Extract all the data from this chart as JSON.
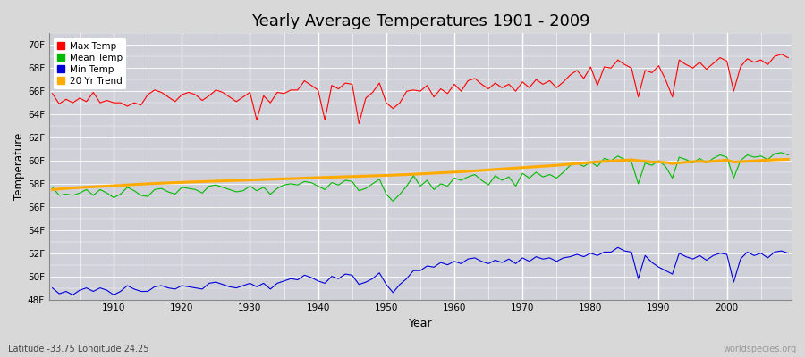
{
  "title": "Yearly Average Temperatures 1901 - 2009",
  "xlabel": "Year",
  "ylabel": "Temperature",
  "lat_lon_label": "Latitude -33.75 Longitude 24.25",
  "watermark": "worldspecies.org",
  "start_year": 1901,
  "end_year": 2009,
  "ylim_min": 48,
  "ylim_max": 71,
  "yticks": [
    48,
    50,
    52,
    54,
    56,
    58,
    60,
    62,
    64,
    66,
    68,
    70
  ],
  "ytick_labels": [
    "48F",
    "50F",
    "52F",
    "54F",
    "56F",
    "58F",
    "60F",
    "62F",
    "64F",
    "66F",
    "68F",
    "70F"
  ],
  "bg_color": "#d8d8d8",
  "plot_bg_color": "#d0d0d8",
  "grid_color": "#ffffff",
  "max_temp_color": "#ff0000",
  "mean_temp_color": "#00bb00",
  "min_temp_color": "#0000dd",
  "trend_color": "#ffaa00",
  "legend_labels": [
    "Max Temp",
    "Mean Temp",
    "Min Temp",
    "20 Yr Trend"
  ],
  "max_temp": [
    65.8,
    64.9,
    65.3,
    65.0,
    65.4,
    65.1,
    65.9,
    65.0,
    65.2,
    65.0,
    65.0,
    64.7,
    65.0,
    64.8,
    65.7,
    66.1,
    65.9,
    65.5,
    65.1,
    65.7,
    65.9,
    65.7,
    65.2,
    65.6,
    66.1,
    65.9,
    65.5,
    65.1,
    65.5,
    65.9,
    63.5,
    65.6,
    65.0,
    65.9,
    65.8,
    66.1,
    66.1,
    66.9,
    66.5,
    66.1,
    63.5,
    66.5,
    66.2,
    66.7,
    66.6,
    63.2,
    65.4,
    65.9,
    66.7,
    65.0,
    64.5,
    65.0,
    66.0,
    66.1,
    66.0,
    66.5,
    65.5,
    66.2,
    65.8,
    66.6,
    66.0,
    66.9,
    67.1,
    66.6,
    66.2,
    66.7,
    66.3,
    66.6,
    66.0,
    66.8,
    66.3,
    67.0,
    66.6,
    66.9,
    66.3,
    66.8,
    67.4,
    67.8,
    67.1,
    68.1,
    66.5,
    68.1,
    68.0,
    68.7,
    68.3,
    68.0,
    65.5,
    67.8,
    67.6,
    68.2,
    67.0,
    65.5,
    68.7,
    68.3,
    68.0,
    68.5,
    67.9,
    68.4,
    68.9,
    68.6,
    66.0,
    68.1,
    68.8,
    68.5,
    68.7,
    68.3,
    69.0,
    69.2,
    68.9
  ],
  "mean_temp": [
    57.7,
    57.0,
    57.1,
    57.0,
    57.2,
    57.5,
    57.0,
    57.5,
    57.2,
    56.8,
    57.1,
    57.7,
    57.4,
    57.0,
    56.9,
    57.5,
    57.6,
    57.3,
    57.1,
    57.7,
    57.6,
    57.5,
    57.2,
    57.8,
    57.9,
    57.7,
    57.5,
    57.3,
    57.4,
    57.8,
    57.4,
    57.7,
    57.1,
    57.6,
    57.9,
    58.0,
    57.9,
    58.2,
    58.1,
    57.8,
    57.5,
    58.1,
    57.9,
    58.3,
    58.2,
    57.4,
    57.6,
    58.0,
    58.4,
    57.1,
    56.5,
    57.1,
    57.8,
    58.7,
    57.8,
    58.3,
    57.5,
    58.0,
    57.8,
    58.5,
    58.3,
    58.6,
    58.8,
    58.3,
    57.9,
    58.7,
    58.3,
    58.6,
    57.8,
    58.9,
    58.5,
    59.0,
    58.6,
    58.8,
    58.5,
    59.0,
    59.6,
    59.8,
    59.5,
    59.9,
    59.5,
    60.2,
    60.0,
    60.4,
    60.1,
    59.9,
    58.0,
    59.8,
    59.6,
    60.0,
    59.5,
    58.5,
    60.3,
    60.1,
    59.8,
    60.2,
    59.8,
    60.2,
    60.5,
    60.3,
    58.5,
    60.0,
    60.5,
    60.3,
    60.4,
    60.1,
    60.6,
    60.7,
    60.5
  ],
  "min_temp": [
    49.0,
    48.5,
    48.7,
    48.4,
    48.8,
    49.0,
    48.7,
    49.0,
    48.8,
    48.4,
    48.7,
    49.2,
    48.9,
    48.7,
    48.7,
    49.1,
    49.2,
    49.0,
    48.9,
    49.2,
    49.1,
    49.0,
    48.9,
    49.4,
    49.5,
    49.3,
    49.1,
    49.0,
    49.2,
    49.4,
    49.1,
    49.4,
    48.9,
    49.4,
    49.6,
    49.8,
    49.7,
    50.1,
    49.9,
    49.6,
    49.4,
    50.0,
    49.8,
    50.2,
    50.1,
    49.3,
    49.5,
    49.8,
    50.3,
    49.3,
    48.6,
    49.3,
    49.8,
    50.5,
    50.5,
    50.9,
    50.8,
    51.2,
    51.0,
    51.3,
    51.1,
    51.5,
    51.6,
    51.3,
    51.1,
    51.4,
    51.2,
    51.5,
    51.1,
    51.6,
    51.3,
    51.7,
    51.5,
    51.6,
    51.3,
    51.6,
    51.7,
    51.9,
    51.7,
    52.0,
    51.8,
    52.1,
    52.1,
    52.5,
    52.2,
    52.1,
    49.8,
    51.8,
    51.2,
    50.8,
    50.5,
    50.2,
    52.0,
    51.7,
    51.5,
    51.8,
    51.4,
    51.8,
    52.0,
    51.9,
    49.5,
    51.5,
    52.1,
    51.8,
    52.0,
    51.6,
    52.1,
    52.2,
    52.0
  ],
  "trend_20yr": [
    57.5,
    57.55,
    57.6,
    57.65,
    57.68,
    57.71,
    57.74,
    57.77,
    57.8,
    57.83,
    57.86,
    57.9,
    57.94,
    57.97,
    58.0,
    58.03,
    58.05,
    58.08,
    58.1,
    58.12,
    58.15,
    58.17,
    58.19,
    58.21,
    58.23,
    58.25,
    58.27,
    58.29,
    58.31,
    58.33,
    58.35,
    58.37,
    58.39,
    58.41,
    58.43,
    58.45,
    58.47,
    58.49,
    58.51,
    58.53,
    58.55,
    58.57,
    58.59,
    58.61,
    58.63,
    58.65,
    58.67,
    58.69,
    58.71,
    58.73,
    58.75,
    58.78,
    58.8,
    58.83,
    58.86,
    58.89,
    58.92,
    58.95,
    58.98,
    59.01,
    59.04,
    59.08,
    59.12,
    59.16,
    59.2,
    59.24,
    59.28,
    59.32,
    59.36,
    59.4,
    59.44,
    59.48,
    59.52,
    59.56,
    59.6,
    59.65,
    59.7,
    59.75,
    59.8,
    59.85,
    59.9,
    59.94,
    59.97,
    60.01,
    60.04,
    60.07,
    60.0,
    59.95,
    59.88,
    59.9,
    59.85,
    59.75,
    59.82,
    59.87,
    59.91,
    59.95,
    59.9,
    59.95,
    60.0,
    60.05,
    59.88,
    59.91,
    59.95,
    59.98,
    60.02,
    60.05,
    60.08,
    60.1,
    60.12
  ]
}
